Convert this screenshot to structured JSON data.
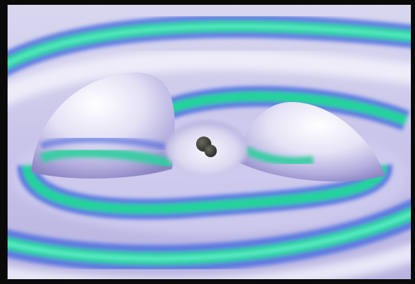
{
  "image": {
    "subject": "spacetime-ripples-around-black-hole-pair",
    "colors": {
      "frame": "#0a0a0a",
      "surface_light": "#e8e6f6",
      "surface_mid": "#bdb9e4",
      "surface_shadow": "#8f89c6",
      "band_blue": "#4f6fe0",
      "band_green": "#22d49a",
      "band_cyan": "#32e6c0",
      "black_hole": "#3a3a34"
    }
  }
}
